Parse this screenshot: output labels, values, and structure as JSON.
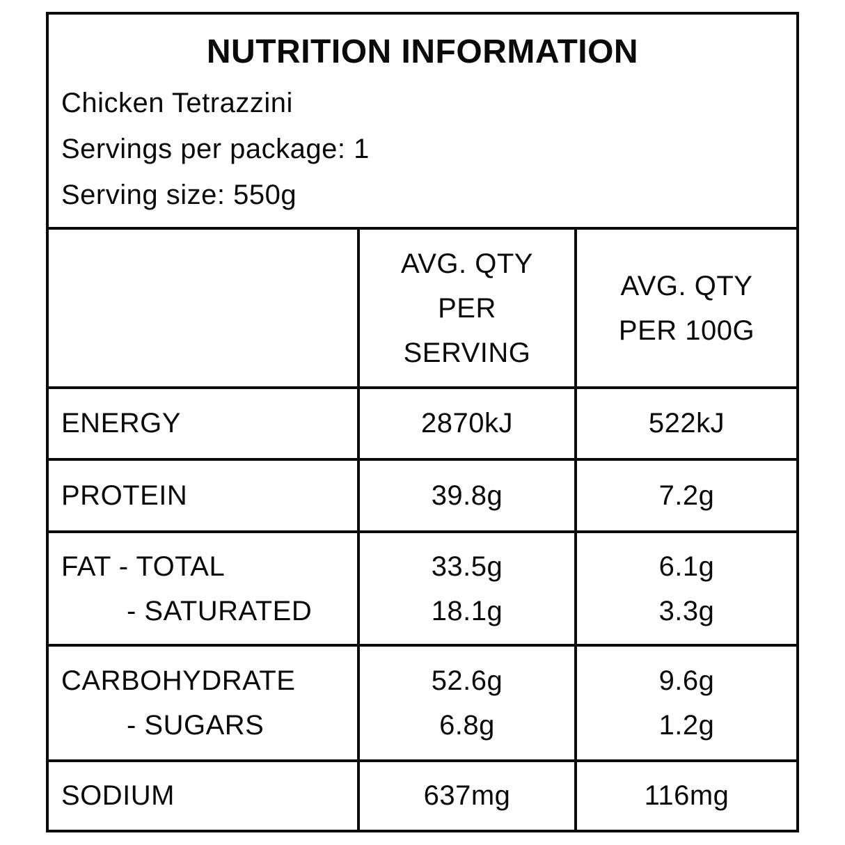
{
  "header": {
    "title": "NUTRITION INFORMATION",
    "product_name": "Chicken Tetrazzini",
    "servings_per_package": "Servings per package: 1",
    "serving_size": "Serving size: 550g"
  },
  "table": {
    "columns": {
      "nutrient": "",
      "per_serving": "AVG. QTY\nPER\nSERVING",
      "per_100g": "AVG. QTY\nPER 100G"
    },
    "rows": [
      {
        "label": "ENERGY",
        "per_serving": "2870kJ",
        "per_100g": "522kJ"
      },
      {
        "label": "PROTEIN",
        "per_serving": "39.8g",
        "per_100g": "7.2g"
      },
      {
        "label": "FAT - TOTAL",
        "sub_label": "- SATURATED",
        "per_serving": "33.5g",
        "sub_per_serving": "18.1g",
        "per_100g": "6.1g",
        "sub_per_100g": "3.3g"
      },
      {
        "label": "CARBOHYDRATE",
        "sub_label": "- SUGARS",
        "per_serving": "52.6g",
        "sub_per_serving": "6.8g",
        "per_100g": "9.6g",
        "sub_per_100g": "1.2g"
      },
      {
        "label": "SODIUM",
        "per_serving": "637mg",
        "per_100g": "116mg"
      }
    ]
  },
  "colors": {
    "text": "#0a0a0a",
    "border": "#0a0a0a",
    "background": "#ffffff"
  }
}
